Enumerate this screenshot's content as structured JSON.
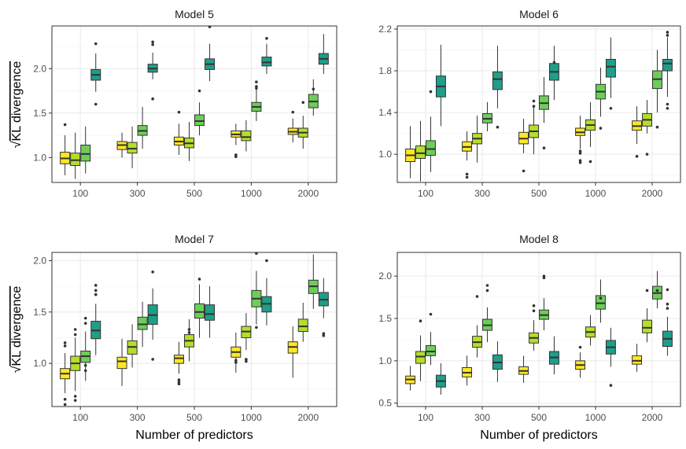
{
  "chart_data": {
    "type": "boxplot",
    "ylabel_text": "KL divergence",
    "ylabel_radical": "√",
    "xlabel": "Number of predictors",
    "categories": [
      "100",
      "300",
      "500",
      "1000",
      "2000"
    ],
    "series_colors": [
      "#FDE725",
      "#B5DE2B",
      "#6CCE59",
      "#35B779",
      "#1F9E89"
    ],
    "panels": [
      {
        "title": "Model 5",
        "ylim": [
          0.72,
          2.48
        ],
        "yticks": [
          "1.0",
          "1.5",
          "2.0"
        ],
        "ytick_values": [
          1.0,
          1.5,
          2.0
        ],
        "series": [
          {
            "name": "s1",
            "color": "#FDE725",
            "boxes": [
              [
                0.8,
                0.93,
                0.99,
                1.06,
                1.25
              ],
              [
                1.0,
                1.09,
                1.14,
                1.18,
                1.28
              ],
              [
                1.03,
                1.14,
                1.18,
                1.23,
                1.38
              ],
              [
                1.14,
                1.23,
                1.26,
                1.3,
                1.38
              ],
              [
                1.17,
                1.26,
                1.29,
                1.33,
                1.44
              ]
            ],
            "outliers": [
              [
                1.37
              ],
              [],
              [
                1.51
              ],
              [
                1.03,
                1.01
              ],
              [
                1.51
              ]
            ]
          },
          {
            "name": "s2",
            "color": "#B5DE2B",
            "boxes": [
              [
                0.76,
                0.91,
                0.97,
                1.05,
                1.28
              ],
              [
                0.88,
                1.05,
                1.1,
                1.17,
                1.35
              ],
              [
                0.96,
                1.11,
                1.16,
                1.22,
                1.4
              ],
              [
                1.07,
                1.19,
                1.23,
                1.3,
                1.42
              ],
              [
                1.1,
                1.23,
                1.28,
                1.33,
                1.47
              ]
            ],
            "outliers": [
              [],
              [],
              [],
              [],
              [
                1.62
              ]
            ]
          },
          {
            "name": "s3",
            "color": "#6CCE59",
            "boxes": [
              [
                0.82,
                0.96,
                1.04,
                1.14,
                1.35
              ],
              [
                1.1,
                1.25,
                1.3,
                1.36,
                1.57
              ],
              [
                1.25,
                1.36,
                1.41,
                1.48,
                1.62
              ],
              [
                1.41,
                1.52,
                1.57,
                1.62,
                1.78
              ],
              [
                1.47,
                1.56,
                1.63,
                1.71,
                1.88
              ]
            ],
            "outliers": [
              [],
              [],
              [
                1.75
              ],
              [
                1.85,
                1.8,
                1.78
              ],
              [
                1.77
              ]
            ]
          },
          {
            "name": "s4",
            "color": "#1F9E89",
            "boxes": [
              [
                1.74,
                1.87,
                1.93,
                1.99,
                2.17
              ],
              [
                1.88,
                1.96,
                2.0,
                2.05,
                2.18
              ],
              [
                1.86,
                1.99,
                2.05,
                2.11,
                2.28
              ],
              [
                1.94,
                2.03,
                2.07,
                2.13,
                2.28
              ],
              [
                1.94,
                2.05,
                2.11,
                2.17,
                2.39
              ]
            ],
            "outliers": [
              [
                1.6,
                2.28
              ],
              [
                2.3,
                2.27,
                1.66
              ],
              [
                2.47
              ],
              [
                2.34
              ],
              []
            ]
          }
        ]
      },
      {
        "title": "Model 6",
        "ylim": [
          0.73,
          2.23
        ],
        "yticks": [
          "1.0",
          "1.4",
          "1.8",
          "2.2"
        ],
        "ytick_values": [
          1.0,
          1.4,
          1.8,
          2.2
        ],
        "series": [
          {
            "name": "s1",
            "color": "#FDE725",
            "boxes": [
              [
                0.77,
                0.93,
                0.99,
                1.05,
                1.27
              ],
              [
                0.94,
                1.03,
                1.07,
                1.12,
                1.22
              ],
              [
                1.01,
                1.1,
                1.15,
                1.21,
                1.34
              ],
              [
                1.05,
                1.18,
                1.21,
                1.25,
                1.37
              ],
              [
                1.1,
                1.23,
                1.27,
                1.32,
                1.46
              ]
            ],
            "outliers": [
              [],
              [
                0.81,
                0.78
              ],
              [
                0.84
              ],
              [
                1.03,
                1.01,
                0.94,
                0.92
              ],
              [
                0.98
              ]
            ]
          },
          {
            "name": "s2",
            "color": "#B5DE2B",
            "boxes": [
              [
                0.74,
                0.96,
                1.01,
                1.08,
                1.32
              ],
              [
                0.92,
                1.1,
                1.15,
                1.2,
                1.37
              ],
              [
                1.0,
                1.16,
                1.22,
                1.28,
                1.45
              ],
              [
                1.07,
                1.23,
                1.28,
                1.33,
                1.5
              ],
              [
                1.2,
                1.27,
                1.33,
                1.39,
                1.52
              ]
            ],
            "outliers": [
              [],
              [],
              [
                1.51,
                1.46
              ],
              [
                0.93
              ],
              [
                1.0
              ]
            ]
          },
          {
            "name": "s3",
            "color": "#6CCE59",
            "boxes": [
              [
                0.83,
                0.99,
                1.05,
                1.13,
                1.36
              ],
              [
                1.22,
                1.3,
                1.34,
                1.39,
                1.5
              ],
              [
                1.3,
                1.43,
                1.49,
                1.56,
                1.74
              ],
              [
                1.36,
                1.53,
                1.6,
                1.67,
                1.83
              ],
              [
                1.4,
                1.63,
                1.72,
                1.8,
                2.0
              ]
            ],
            "outliers": [
              [
                1.6
              ],
              [],
              [
                1.06
              ],
              [
                1.25
              ],
              [
                1.26
              ]
            ]
          },
          {
            "name": "s4",
            "color": "#1F9E89",
            "boxes": [
              [
                1.27,
                1.55,
                1.65,
                1.75,
                2.05
              ],
              [
                1.44,
                1.62,
                1.72,
                1.79,
                2.04
              ],
              [
                1.52,
                1.71,
                1.79,
                1.87,
                2.04
              ],
              [
                1.54,
                1.74,
                1.84,
                1.91,
                2.12
              ],
              [
                1.55,
                1.8,
                1.87,
                1.91,
                2.12
              ]
            ],
            "outliers": [
              [],
              [
                1.26
              ],
              [
                1.88
              ],
              [
                1.44
              ],
              [
                2.17,
                2.14,
                1.48,
                1.44
              ]
            ]
          }
        ]
      },
      {
        "title": "Model 7",
        "ylim": [
          0.58,
          2.08
        ],
        "yticks": [
          "1.0",
          "1.5",
          "2.0"
        ],
        "ytick_values": [
          1.0,
          1.5,
          2.0
        ],
        "series": [
          {
            "name": "s1",
            "color": "#FDE725",
            "boxes": [
              [
                0.71,
                0.85,
                0.9,
                0.95,
                1.1
              ],
              [
                0.78,
                0.95,
                1.02,
                1.06,
                1.24
              ],
              [
                0.9,
                1.0,
                1.05,
                1.08,
                1.21
              ],
              [
                0.91,
                1.06,
                1.11,
                1.16,
                1.3
              ],
              [
                0.86,
                1.1,
                1.16,
                1.21,
                1.36
              ]
            ],
            "outliers": [
              [
                1.2,
                1.17,
                0.65,
                0.6
              ],
              [],
              [
                0.84,
                0.82,
                0.8
              ],
              [
                1.03,
                1.01
              ],
              []
            ]
          },
          {
            "name": "s2",
            "color": "#B5DE2B",
            "boxes": [
              [
                0.73,
                0.93,
                1.0,
                1.07,
                1.25
              ],
              [
                0.96,
                1.09,
                1.16,
                1.22,
                1.38
              ],
              [
                1.02,
                1.16,
                1.22,
                1.28,
                1.43
              ],
              [
                1.13,
                1.25,
                1.31,
                1.36,
                1.49
              ],
              [
                1.21,
                1.31,
                1.36,
                1.43,
                1.59
              ]
            ],
            "outliers": [
              [
                1.33,
                1.28,
                0.68,
                0.64
              ],
              [],
              [
                1.33,
                1.3
              ],
              [
                1.04,
                1.02
              ],
              []
            ]
          },
          {
            "name": "s3",
            "color": "#6CCE59",
            "boxes": [
              [
                0.83,
                1.01,
                1.07,
                1.12,
                1.31
              ],
              [
                1.16,
                1.33,
                1.38,
                1.45,
                1.6
              ],
              [
                1.25,
                1.44,
                1.5,
                1.58,
                1.77
              ],
              [
                1.38,
                1.55,
                1.63,
                1.71,
                1.9
              ],
              [
                1.53,
                1.68,
                1.75,
                1.81,
                2.06
              ]
            ],
            "outliers": [
              [
                1.44,
                1.39,
                0.98,
                0.93
              ],
              [],
              [
                1.82
              ],
              [
                2.07,
                1.35
              ],
              []
            ]
          },
          {
            "name": "s4",
            "color": "#1F9E89",
            "boxes": [
              [
                1.08,
                1.24,
                1.32,
                1.41,
                1.58
              ],
              [
                1.23,
                1.38,
                1.47,
                1.57,
                1.73
              ],
              [
                1.25,
                1.42,
                1.48,
                1.57,
                1.75
              ],
              [
                1.37,
                1.5,
                1.58,
                1.65,
                1.83
              ],
              [
                1.44,
                1.56,
                1.62,
                1.69,
                1.83
              ]
            ],
            "outliers": [
              [
                1.76,
                1.71,
                1.67
              ],
              [
                1.89,
                1.04
              ],
              [],
              [
                2.0
              ],
              [
                1.29,
                1.27
              ]
            ]
          }
        ]
      },
      {
        "title": "Model 8",
        "ylim": [
          0.46,
          2.28
        ],
        "yticks": [
          "0.5",
          "1.0",
          "1.5",
          "2.0"
        ],
        "ytick_values": [
          0.5,
          1.0,
          1.5,
          2.0
        ],
        "series": [
          {
            "name": "s1",
            "color": "#FDE725",
            "boxes": [
              [
                0.65,
                0.73,
                0.78,
                0.82,
                0.94
              ],
              [
                0.71,
                0.81,
                0.86,
                0.92,
                1.06
              ],
              [
                0.74,
                0.84,
                0.88,
                0.93,
                1.06
              ],
              [
                0.8,
                0.9,
                0.95,
                1.0,
                1.1
              ],
              [
                0.87,
                0.96,
                1.0,
                1.06,
                1.2
              ]
            ],
            "outliers": [
              [],
              [],
              [],
              [
                1.16
              ],
              []
            ]
          },
          {
            "name": "s2",
            "color": "#B5DE2B",
            "boxes": [
              [
                0.76,
                0.97,
                1.05,
                1.11,
                1.3
              ],
              [
                1.04,
                1.16,
                1.22,
                1.29,
                1.42
              ],
              [
                1.12,
                1.21,
                1.27,
                1.33,
                1.48
              ],
              [
                1.18,
                1.28,
                1.34,
                1.4,
                1.54
              ],
              [
                1.22,
                1.33,
                1.39,
                1.48,
                1.62
              ]
            ],
            "outliers": [
              [
                1.47
              ],
              [
                1.76
              ],
              [
                1.65,
                1.59
              ],
              [],
              [
                1.83
              ]
            ]
          },
          {
            "name": "s3",
            "color": "#6CCE59",
            "boxes": [
              [
                0.95,
                1.06,
                1.11,
                1.18,
                1.34
              ],
              [
                1.22,
                1.36,
                1.42,
                1.49,
                1.63
              ],
              [
                1.36,
                1.49,
                1.54,
                1.6,
                1.74
              ],
              [
                1.45,
                1.61,
                1.68,
                1.77,
                1.96
              ],
              [
                1.62,
                1.73,
                1.8,
                1.88,
                2.06
              ]
            ],
            "outliers": [
              [
                1.55
              ],
              [
                1.89,
                1.83
              ],
              [
                2.0,
                1.98
              ],
              [
                1.74
              ],
              [
                1.83
              ]
            ]
          },
          {
            "name": "s4",
            "color": "#1F9E89",
            "boxes": [
              [
                0.6,
                0.69,
                0.76,
                0.83,
                0.97
              ],
              [
                0.75,
                0.9,
                0.98,
                1.07,
                1.23
              ],
              [
                0.84,
                0.96,
                1.04,
                1.11,
                1.29
              ],
              [
                0.93,
                1.08,
                1.16,
                1.24,
                1.39
              ],
              [
                1.06,
                1.17,
                1.26,
                1.35,
                1.52
              ]
            ],
            "outliers": [
              [],
              [],
              [],
              [
                0.71
              ],
              [
                1.84,
                1.67,
                1.62
              ]
            ]
          }
        ]
      }
    ]
  }
}
